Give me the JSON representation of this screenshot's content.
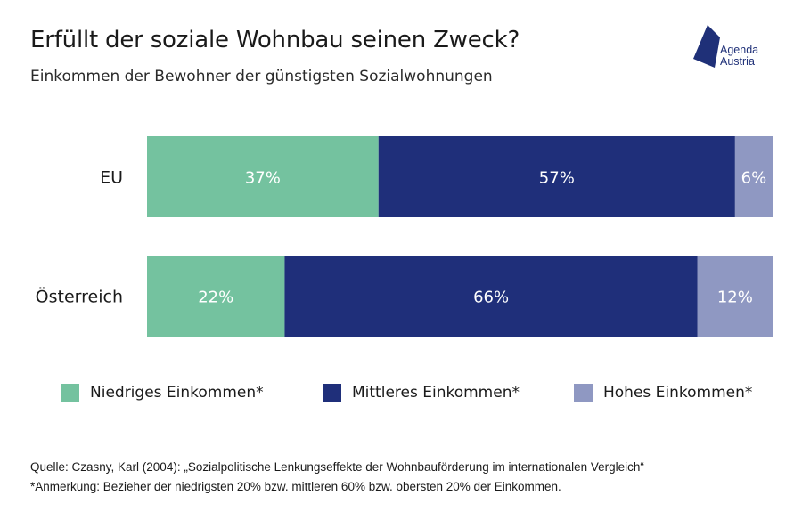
{
  "header": {
    "title": "Erfüllt der soziale Wohnbau seinen Zweck?",
    "subtitle": "Einkommen der Bewohner der günstigsten Sozialwohnungen"
  },
  "logo": {
    "line1": "Agenda",
    "line2": "Austria",
    "color": "#1f3078"
  },
  "chart_data": {
    "type": "bar",
    "orientation": "horizontal",
    "stacked": true,
    "normalized": true,
    "categories": [
      "EU",
      "Österreich"
    ],
    "series": [
      {
        "name": "Niedriges Einkommen*",
        "values": [
          37,
          22
        ],
        "labels": [
          "37%",
          "22%"
        ],
        "color": "#74c29f"
      },
      {
        "name": "Mittleres Einkommen*",
        "values": [
          57,
          66
        ],
        "labels": [
          "57%",
          "66%"
        ],
        "color": "#1f2f7a"
      },
      {
        "name": "Hohes Einkommen*",
        "values": [
          6,
          12
        ],
        "labels": [
          "6%",
          "12%"
        ],
        "color": "#8f98c2"
      }
    ],
    "xlim": [
      0,
      100
    ],
    "grid": false,
    "legend_position": "bottom"
  },
  "footnotes": {
    "source": "Quelle: Czasny, Karl (2004): „Sozialpolitische Lenkungseffekte der Wohnbauförderung im internationalen Vergleich“",
    "note": "*Anmerkung: Bezieher der niedrigsten 20% bzw. mittleren 60% bzw. obersten 20% der Einkommen."
  }
}
